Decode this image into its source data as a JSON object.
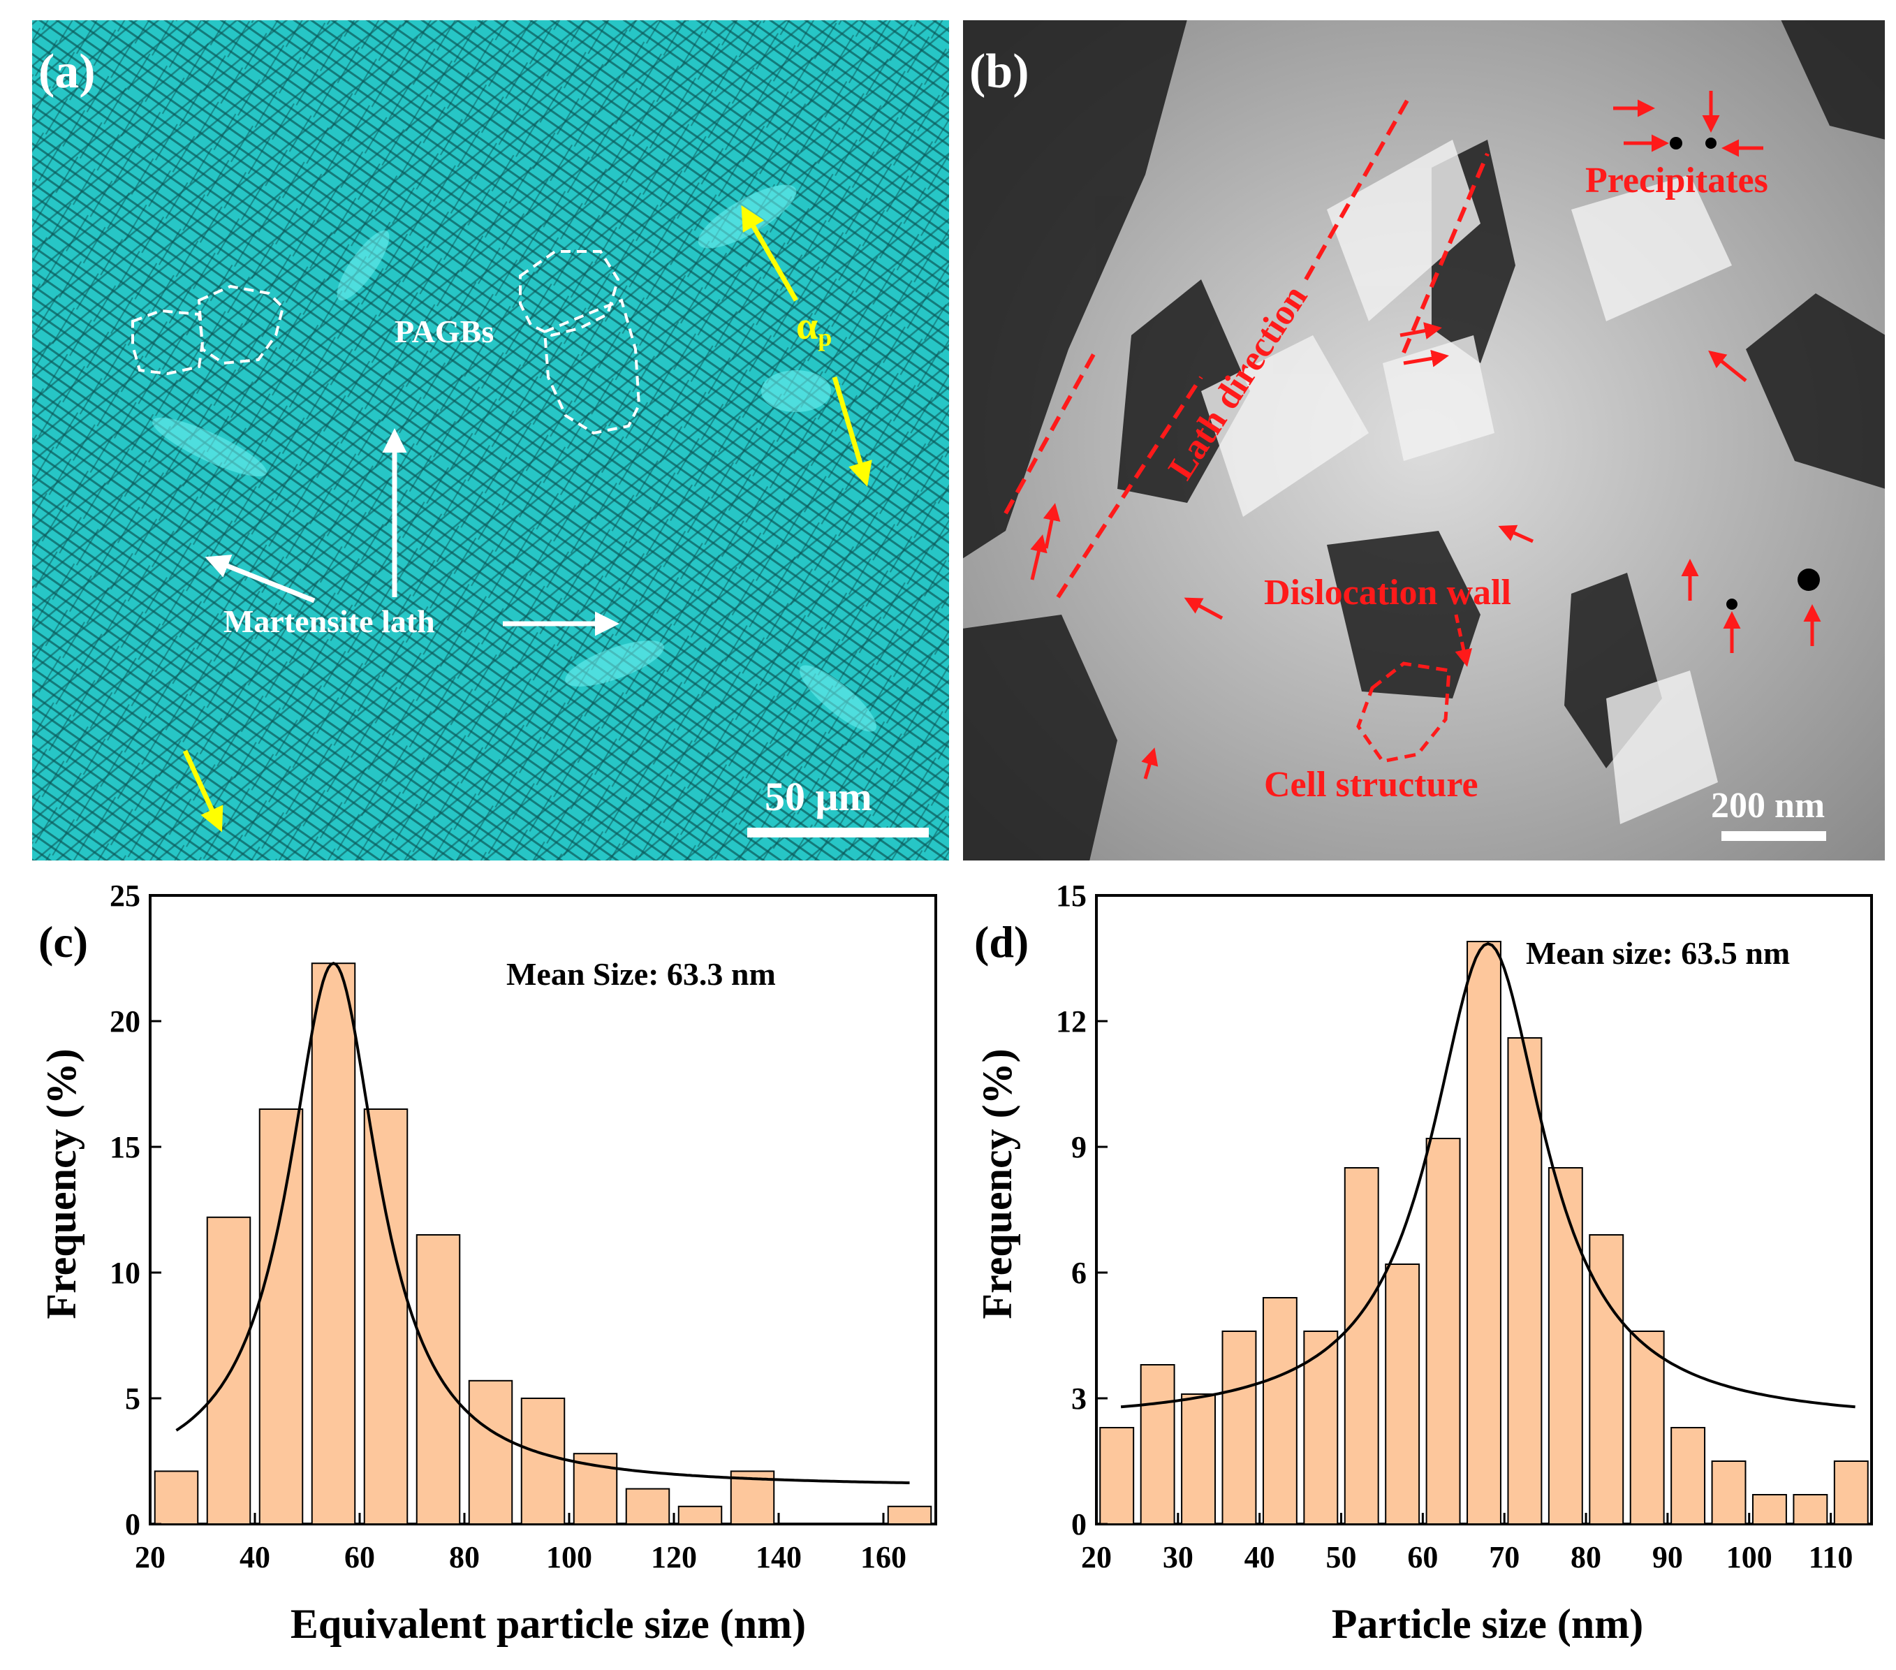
{
  "panel_a": {
    "label": "(a)",
    "annotations": {
      "pagbs": "PAGBs",
      "martensite_lath": "Martensite lath",
      "alpha_p_symbol": "α",
      "alpha_p_subscript": "p"
    },
    "scale_bar": "50 μm",
    "colors": {
      "background": "#1fbfbf",
      "annotation_white": "#ffffff",
      "annotation_yellow": "#ffff00"
    }
  },
  "panel_b": {
    "label": "(b)",
    "annotations": {
      "precipitates": "Precipitates",
      "lath_direction": "Lath direction",
      "dislocation_wall": "Dislocation wall",
      "cell_structure": "Cell structure"
    },
    "scale_bar": "200 nm",
    "colors": {
      "annotation_red": "#ff1a1a"
    }
  },
  "chart_data": [
    {
      "type": "bar",
      "panel": "(c)",
      "title": "",
      "annotation": "Mean Size: 63.3 nm",
      "xlabel": "Equivalent particle size (nm)",
      "ylabel": "Frequency (%)",
      "xlim": [
        20,
        170
      ],
      "ylim": [
        0,
        25
      ],
      "xticks": [
        20,
        40,
        60,
        80,
        100,
        120,
        140,
        160
      ],
      "yticks": [
        0,
        5,
        10,
        15,
        20,
        25
      ],
      "bin_centers": [
        25,
        35,
        45,
        55,
        65,
        75,
        85,
        95,
        105,
        115,
        125,
        135,
        145,
        155,
        165
      ],
      "values": [
        2.1,
        12.2,
        16.5,
        22.3,
        16.5,
        11.5,
        5.7,
        5.0,
        2.8,
        1.4,
        0.7,
        2.1,
        0,
        0,
        0.7
      ],
      "fit": {
        "model": "lorentzian",
        "baseline": 1.45,
        "center": 55,
        "amplitude": 20.85,
        "hwhm": 10.5,
        "x_range": [
          25,
          165
        ]
      },
      "bar_color": "#fdc79c"
    },
    {
      "type": "bar",
      "panel": "(d)",
      "title": "",
      "annotation": "Mean size: 63.5 nm",
      "xlabel": "Particle size (nm)",
      "ylabel": "Frequency (%)",
      "xlim": [
        20,
        115
      ],
      "ylim": [
        0,
        15
      ],
      "xticks": [
        20,
        30,
        40,
        50,
        60,
        70,
        80,
        90,
        100,
        110
      ],
      "yticks": [
        0,
        3,
        6,
        9,
        12,
        15
      ],
      "bin_centers": [
        22.5,
        27.5,
        32.5,
        37.5,
        42.5,
        47.5,
        52.5,
        57.5,
        62.5,
        67.5,
        72.5,
        77.5,
        82.5,
        87.5,
        92.5,
        97.5,
        102.5,
        107.5,
        112.5
      ],
      "values": [
        2.3,
        3.8,
        3.1,
        4.6,
        5.4,
        4.6,
        8.5,
        6.2,
        9.2,
        13.9,
        11.6,
        8.5,
        6.9,
        4.6,
        2.3,
        1.5,
        0.7,
        0.7,
        1.5
      ],
      "fit": {
        "model": "lorentzian",
        "baseline": 2.4,
        "center": 68,
        "amplitude": 11.45,
        "hwhm": 8.5,
        "x_range": [
          23,
          113
        ]
      },
      "bar_color": "#fdc79c"
    }
  ]
}
